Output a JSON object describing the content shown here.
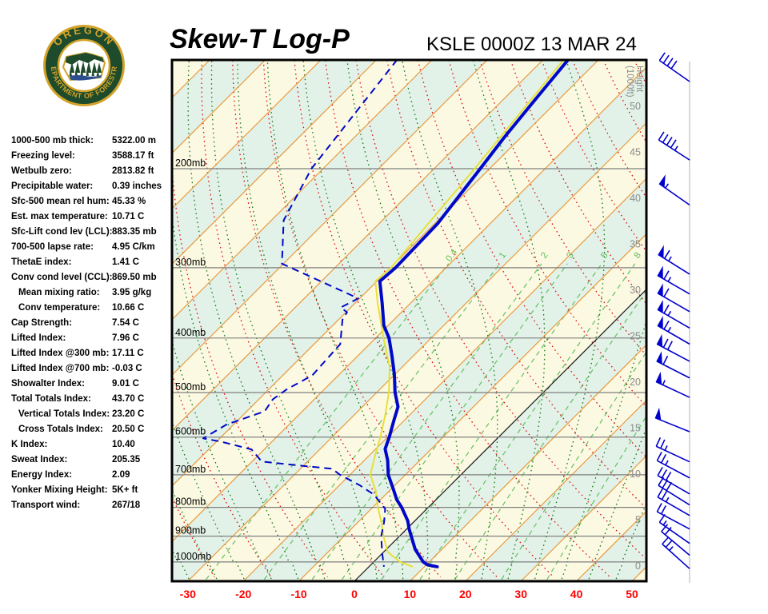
{
  "header": {
    "title": "Skew-T Log-P",
    "station": "KSLE 0000Z 13 MAR 24"
  },
  "logo": {
    "top_text": "OREGON",
    "bottom_text": "DEPARTMENT OF FORESTRY",
    "green": "#1e4b2c",
    "gold": "#d2a32a"
  },
  "indices": [
    {
      "label": "1000-500 mb thick:",
      "value": "5322.00 m",
      "indent": false
    },
    {
      "label": "Freezing level:",
      "value": "3588.17 ft",
      "indent": false
    },
    {
      "label": "Wetbulb zero:",
      "value": "2813.82 ft",
      "indent": false
    },
    {
      "label": "Precipitable water:",
      "value": "0.39 inches",
      "indent": false
    },
    {
      "label": "Sfc-500 mean rel hum:",
      "value": "45.33 %",
      "indent": false
    },
    {
      "label": "Est. max temperature:",
      "value": "10.71 C",
      "indent": false
    },
    {
      "label": "Sfc-Lift cond lev (LCL):",
      "value": "883.35 mb",
      "indent": false
    },
    {
      "label": "700-500 lapse rate:",
      "value": "4.95 C/km",
      "indent": false
    },
    {
      "label": "ThetaE index:",
      "value": "1.41 C",
      "indent": false
    },
    {
      "label": "Conv cond level (CCL):",
      "value": "869.50 mb",
      "indent": false
    },
    {
      "label": "Mean mixing ratio:",
      "value": "3.95 g/kg",
      "indent": true
    },
    {
      "label": "Conv temperature:",
      "value": "10.66 C",
      "indent": true
    },
    {
      "label": "Cap Strength:",
      "value": "7.54 C",
      "indent": false
    },
    {
      "label": "Lifted Index:",
      "value": "7.96 C",
      "indent": false
    },
    {
      "label": "Lifted Index @300 mb:",
      "value": "17.11 C",
      "indent": false
    },
    {
      "label": "Lifted Index @700 mb:",
      "value": "-0.03 C",
      "indent": false
    },
    {
      "label": "Showalter Index:",
      "value": "9.01 C",
      "indent": false
    },
    {
      "label": "Total Totals Index:",
      "value": "43.70 C",
      "indent": false
    },
    {
      "label": "Vertical Totals Index:",
      "value": "23.20 C",
      "indent": true
    },
    {
      "label": "Cross Totals Index:",
      "value": "20.50 C",
      "indent": true
    },
    {
      "label": "K Index:",
      "value": "10.40",
      "indent": false
    },
    {
      "label": "Sweat Index:",
      "value": "205.35",
      "indent": false
    },
    {
      "label": "Energy Index:",
      "value": "2.09",
      "indent": false
    },
    {
      "label": "Yonker Mixing Height:",
      "value": "5K+ ft",
      "indent": false
    },
    {
      "label": "Transport wind:",
      "value": "267/18",
      "indent": false
    }
  ],
  "chart_data": {
    "type": "skewt-log-p",
    "pressure_axis": {
      "labels": [
        "200mb",
        "300mb",
        "400mb",
        "500mb",
        "600mb",
        "700mb",
        "800mb",
        "900mb",
        "1000mb"
      ],
      "levels_mb": [
        200,
        300,
        400,
        500,
        600,
        700,
        800,
        900,
        1000
      ]
    },
    "temp_axis": {
      "ticks_c": [
        -30,
        -20,
        -10,
        0,
        10,
        20,
        30,
        40,
        50
      ],
      "tick_color": "#ff0000"
    },
    "height_axis": {
      "label_line1": "Height",
      "label_line2": "(1000ft)",
      "ticks_kft": [
        50,
        45,
        40,
        35,
        30,
        25,
        20,
        15,
        10,
        5,
        0
      ]
    },
    "isotherms": {
      "step_c": 10,
      "highlight_c": 0
    },
    "dry_adiabats": {
      "theta_min": -30,
      "theta_max": 150,
      "step": 10
    },
    "moist_adiabats": {
      "thetaw_min": -65,
      "thetaw_max": 45,
      "step": 5
    },
    "mixing_ratio_lines_gkg": [
      0.4,
      1,
      2,
      3,
      5,
      8,
      12,
      20,
      32
    ],
    "mixing_ratio_labels_gkg": [
      "0.4",
      "1",
      "2",
      "3",
      "5",
      "8"
    ],
    "temperature_profile_p_t": [
      [
        128,
        -55.2
      ],
      [
        150,
        -54
      ],
      [
        176,
        -52.7
      ],
      [
        200,
        -51.4
      ],
      [
        250,
        -49.2
      ],
      [
        300,
        -48.8
      ],
      [
        317,
        -49.2
      ],
      [
        347,
        -44.8
      ],
      [
        380,
        -40.5
      ],
      [
        400,
        -37.3
      ],
      [
        430,
        -33.6
      ],
      [
        465,
        -29.7
      ],
      [
        500,
        -26.4
      ],
      [
        530,
        -23.3
      ],
      [
        560,
        -21.6
      ],
      [
        600,
        -19.4
      ],
      [
        630,
        -18
      ],
      [
        660,
        -15.5
      ],
      [
        700,
        -12.8
      ],
      [
        745,
        -9.1
      ],
      [
        775,
        -6.8
      ],
      [
        800,
        -4.5
      ],
      [
        845,
        -1
      ],
      [
        875,
        0.8
      ],
      [
        900,
        2.4
      ],
      [
        950,
        5.5
      ],
      [
        1000,
        9.2
      ],
      [
        1012,
        10.5
      ],
      [
        1020,
        12.6
      ]
    ],
    "dewpoint_profile_p_t": [
      [
        128,
        -86
      ],
      [
        200,
        -81.8
      ],
      [
        247,
        -77.5
      ],
      [
        295,
        -70
      ],
      [
        340,
        -50
      ],
      [
        353,
        -51.5
      ],
      [
        360,
        -49.5
      ],
      [
        371,
        -49
      ],
      [
        410,
        -45
      ],
      [
        466,
        -44.4
      ],
      [
        494,
        -46.5
      ],
      [
        514,
        -47.2
      ],
      [
        540,
        -46.5
      ],
      [
        570,
        -51
      ],
      [
        603,
        -52.7
      ],
      [
        611,
        -49
      ],
      [
        631,
        -42
      ],
      [
        663,
        -38
      ],
      [
        674,
        -30.5
      ],
      [
        683,
        -24
      ],
      [
        700,
        -21.5
      ],
      [
        731,
        -16
      ],
      [
        760,
        -11.7
      ],
      [
        805,
        -7.2
      ],
      [
        850,
        -5
      ],
      [
        900,
        -3
      ],
      [
        960,
        0
      ],
      [
        1020,
        3
      ]
    ],
    "wetbulb_profile_p_t": [
      [
        128,
        -56
      ],
      [
        200,
        -52.4
      ],
      [
        300,
        -49.6
      ],
      [
        317,
        -50
      ],
      [
        347,
        -45.6
      ],
      [
        400,
        -38.3
      ],
      [
        450,
        -32
      ],
      [
        500,
        -27.5
      ],
      [
        550,
        -24
      ],
      [
        600,
        -21
      ],
      [
        650,
        -18.5
      ],
      [
        700,
        -16
      ],
      [
        750,
        -12
      ],
      [
        800,
        -8.8
      ],
      [
        850,
        -5.5
      ],
      [
        900,
        -2.6
      ],
      [
        960,
        1
      ],
      [
        1000,
        5
      ],
      [
        1020,
        8.2
      ]
    ],
    "wind_barbs": [
      {
        "p": 140,
        "kt": 40,
        "angle": 35
      },
      {
        "p": 193,
        "kt": 45,
        "angle": 33
      },
      {
        "p": 232,
        "kt": 55,
        "angle": 35
      },
      {
        "p": 308,
        "kt": 65,
        "angle": 32
      },
      {
        "p": 334,
        "kt": 65,
        "angle": 30
      },
      {
        "p": 359,
        "kt": 60,
        "angle": 30
      },
      {
        "p": 384,
        "kt": 65,
        "angle": 30
      },
      {
        "p": 410,
        "kt": 65,
        "angle": 30
      },
      {
        "p": 440,
        "kt": 70,
        "angle": 28
      },
      {
        "p": 471,
        "kt": 60,
        "angle": 27
      },
      {
        "p": 510,
        "kt": 55,
        "angle": 25
      },
      {
        "p": 587,
        "kt": 50,
        "angle": 22
      },
      {
        "p": 664,
        "kt": 25,
        "angle": 25
      },
      {
        "p": 709,
        "kt": 25,
        "angle": 28
      },
      {
        "p": 757,
        "kt": 30,
        "angle": 30
      },
      {
        "p": 792,
        "kt": 30,
        "angle": 32
      },
      {
        "p": 827,
        "kt": 25,
        "angle": 30
      },
      {
        "p": 874,
        "kt": 20,
        "angle": 28
      },
      {
        "p": 927,
        "kt": 15,
        "angle": 35
      },
      {
        "p": 973,
        "kt": 20,
        "angle": 40
      },
      {
        "p": 1028,
        "kt": 25,
        "angle": 42
      }
    ]
  },
  "colors": {
    "band_yellow": "#fcf9e2",
    "band_green": "#e2f2e8",
    "isotherm": "#e89a40",
    "isotherm_zero": "#1a1a1a",
    "grid_gray": "#808080",
    "dry_adiabat": "#dd1111",
    "moist_adiabat": "#1b7a1b",
    "mixing_ratio": "#63c063",
    "mixing_label": "#5fbf5f",
    "temperature": "#0008c8",
    "dewpoint": "#0008c8",
    "wetbulb": "#e8df38",
    "wind_barb": "#0000cc",
    "barb_guide": "#d9d9d9",
    "height_label": "#8c8c8c",
    "pressure_label": "#000000",
    "temp_tick": "#ff0000",
    "border": "#000000"
  }
}
